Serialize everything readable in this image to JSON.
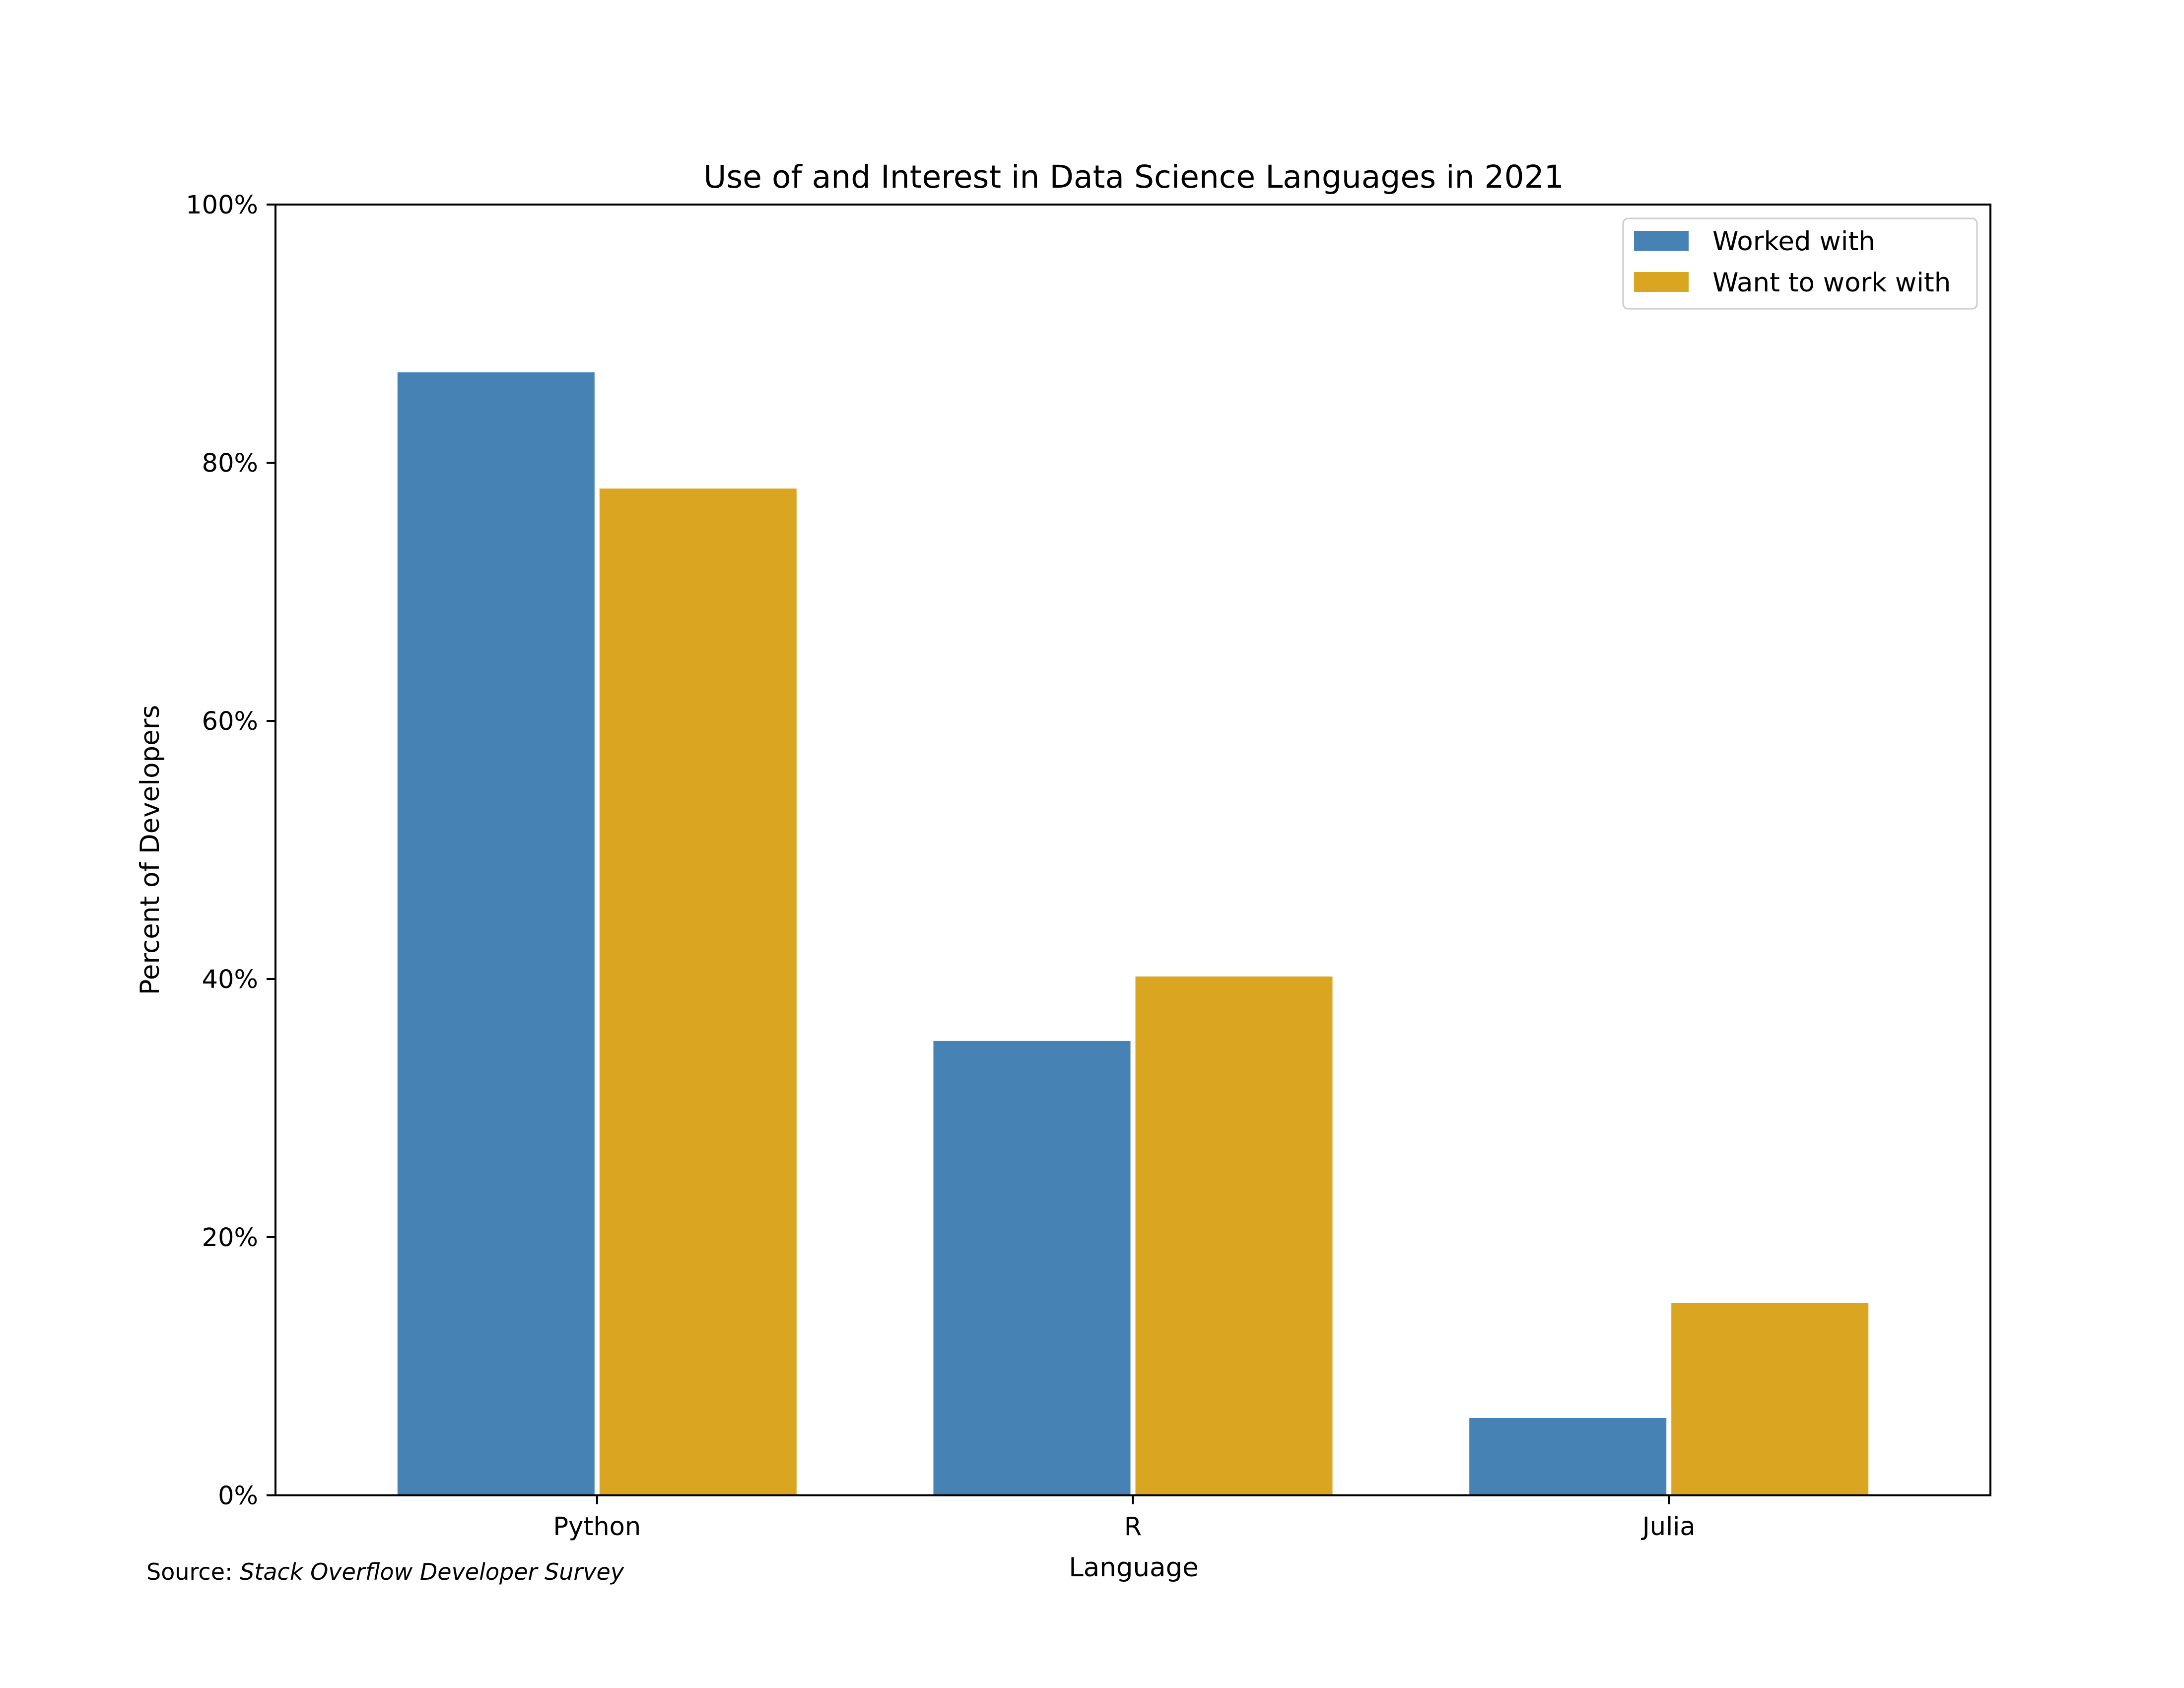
{
  "chart_data": {
    "type": "bar",
    "title": "Use of and Interest in Data Science Languages in 2021",
    "xlabel": "Language",
    "ylabel": "Percent of Developers",
    "categories": [
      "Python",
      "R",
      "Julia"
    ],
    "series": [
      {
        "name": "Worked with",
        "color": "#4682b4",
        "values": [
          87,
          35.2,
          6
        ]
      },
      {
        "name": "Want to work with",
        "color": "#daa520",
        "values": [
          78,
          40.2,
          14.9
        ]
      }
    ],
    "ylim": [
      0,
      100
    ],
    "yticks": [
      0,
      20,
      40,
      60,
      80,
      100
    ],
    "ytick_labels": [
      "0%",
      "20%",
      "40%",
      "60%",
      "80%",
      "100%"
    ],
    "grid": false,
    "legend_position": "top-right"
  },
  "source": {
    "prefix": "Source: ",
    "name": "Stack Overflow Developer Survey"
  }
}
